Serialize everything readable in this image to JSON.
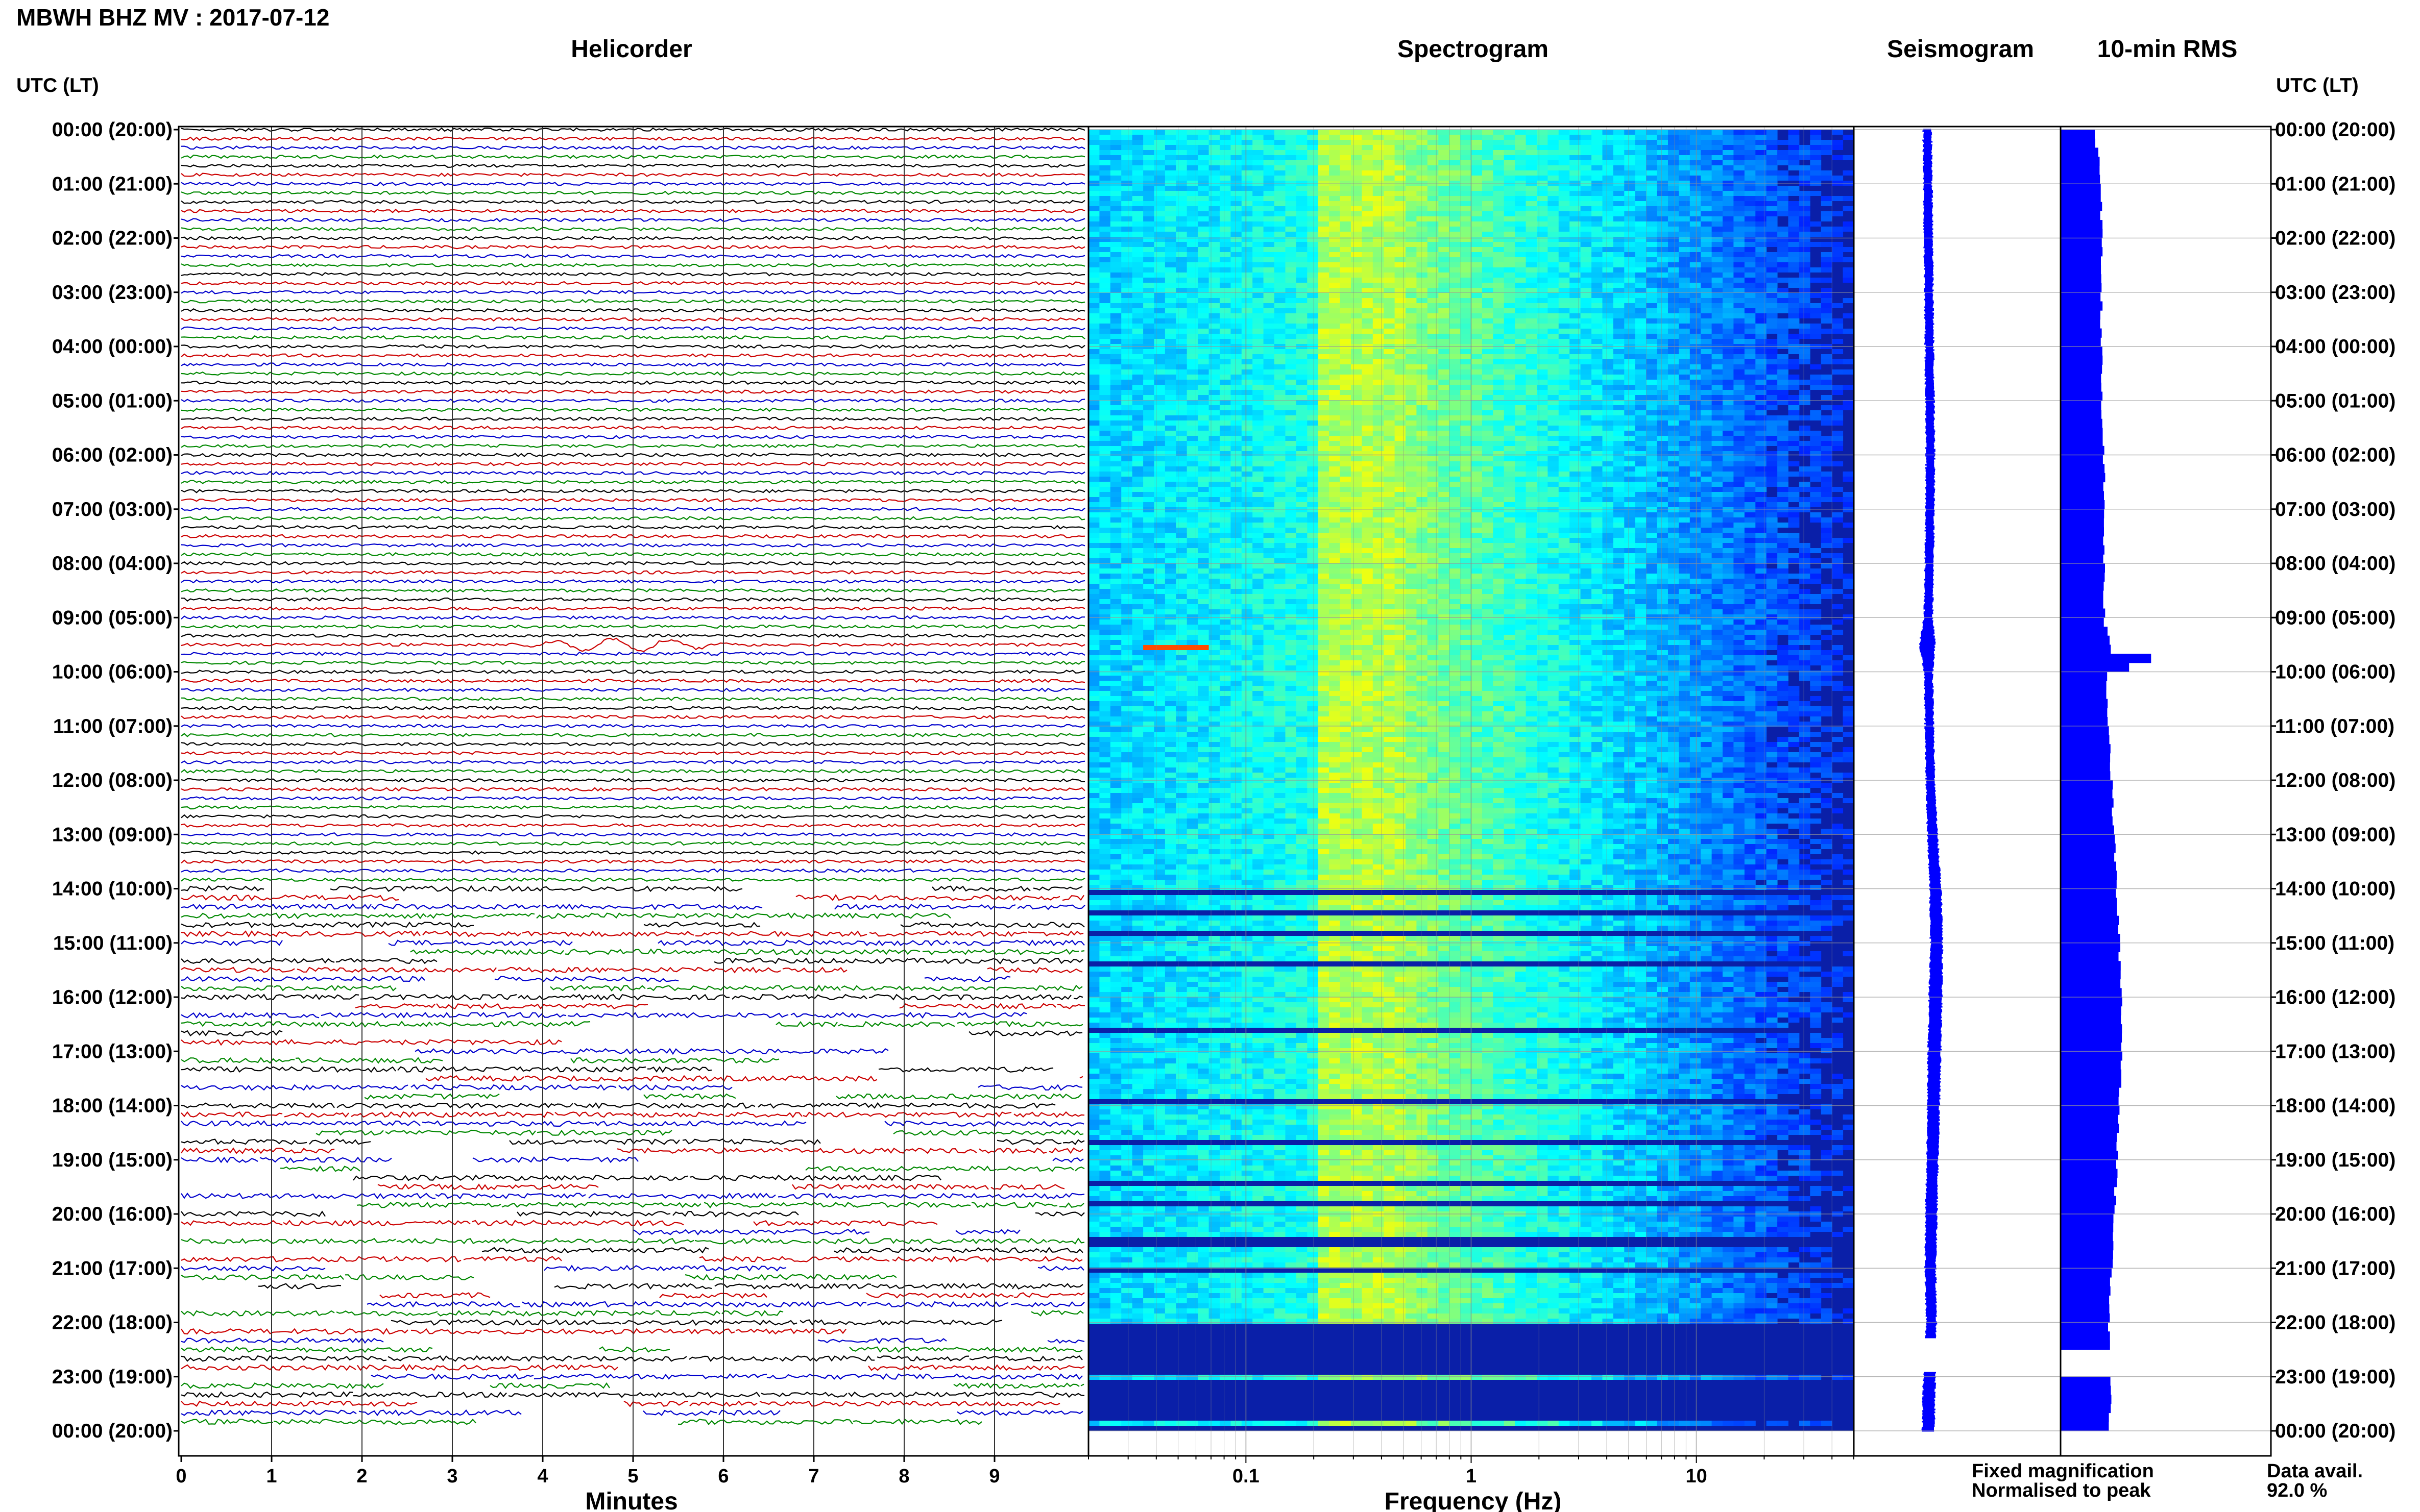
{
  "header": {
    "title": "MBWH BHZ MV : 2017-07-12"
  },
  "panels": {
    "helicorder": "Helicorder",
    "spectrogram": "Spectrogram",
    "seismogram": "Seismogram",
    "rms": "10-min RMS"
  },
  "axes": {
    "time_header_left": "UTC (LT)",
    "time_header_right": "UTC (LT)",
    "minutes_label": "Minutes",
    "frequency_label": "Frequency (Hz)"
  },
  "legend": {
    "fixed": "Fixed magnification",
    "normalised": "Normalised to peak",
    "fixed_color": "#0000ff",
    "normalised_color": "#ff0000",
    "avail_label": "Data avail.",
    "avail_value": "92.0 %"
  },
  "colors": {
    "trace_cycle": [
      "#000000",
      "#cc0000",
      "#0000cc",
      "#008800"
    ],
    "seismogram": "#0000ff",
    "rms_bar": "#0000ff",
    "spectrogram_background": "#0a1fa8"
  },
  "chart_data": [
    {
      "type": "line",
      "name": "helicorder",
      "x_unit": "minutes",
      "xlim": [
        0,
        10
      ],
      "x_ticks": [
        "0",
        "1",
        "2",
        "3",
        "4",
        "5",
        "6",
        "7",
        "8",
        "9"
      ],
      "xlabel": "Minutes",
      "time_labels": [
        "00:00 (20:00)",
        "01:00 (21:00)",
        "02:00 (22:00)",
        "03:00 (23:00)",
        "04:00 (00:00)",
        "05:00 (01:00)",
        "06:00 (02:00)",
        "07:00 (03:00)",
        "08:00 (04:00)",
        "09:00 (05:00)",
        "10:00 (06:00)",
        "11:00 (07:00)",
        "12:00 (08:00)",
        "13:00 (09:00)",
        "14:00 (10:00)",
        "15:00 (11:00)",
        "16:00 (12:00)",
        "17:00 (13:00)",
        "18:00 (14:00)",
        "19:00 (15:00)",
        "20:00 (16:00)",
        "21:00 (17:00)",
        "22:00 (18:00)",
        "23:00 (19:00)",
        "00:00 (20:00)"
      ],
      "lines_per_hour": 6,
      "event_hour": 9.5,
      "gap_period_hours": [
        14,
        24
      ]
    },
    {
      "type": "heatmap",
      "name": "spectrogram",
      "x_scale": "log",
      "xlim_hz": [
        0.02,
        50
      ],
      "x_ticks": [
        "0.1",
        "1",
        "10"
      ],
      "xlabel": "Frequency (Hz)",
      "peak_band_hz": [
        0.2,
        0.5
      ],
      "event_hour": 9.5,
      "event_band_hz": [
        0.035,
        0.07
      ],
      "gap_hours": [
        [
          14.0,
          14.1
        ],
        [
          14.4,
          14.46
        ],
        [
          14.7,
          14.8
        ],
        [
          15.0,
          15.05
        ],
        [
          15.3,
          15.4
        ],
        [
          16.55,
          16.6
        ],
        [
          17.8,
          17.95
        ],
        [
          18.6,
          18.65
        ],
        [
          19.35,
          19.45
        ],
        [
          19.75,
          19.8
        ],
        [
          20.05,
          20.1
        ],
        [
          20.4,
          20.55
        ],
        [
          20.95,
          21.0
        ],
        [
          21.5,
          21.55
        ],
        [
          22.0,
          22.95
        ],
        [
          23.05,
          23.8
        ],
        [
          23.9,
          23.95
        ]
      ]
    },
    {
      "type": "line",
      "name": "seismogram",
      "hours": [
        0,
        2,
        4,
        6,
        8,
        9,
        9.5,
        10,
        11,
        12,
        13,
        14,
        15,
        16,
        17,
        18,
        19,
        20,
        21,
        22,
        23,
        24
      ],
      "offset": [
        0.35,
        0.4,
        0.45,
        0.5,
        0.45,
        0.4,
        0.35,
        0.4,
        0.45,
        0.5,
        0.6,
        0.75,
        0.8,
        0.75,
        0.7,
        0.65,
        0.6,
        0.55,
        0.5,
        0.55,
        0.45,
        0.4
      ],
      "amplitude": [
        1,
        1,
        1,
        1,
        1,
        1,
        2,
        1,
        1,
        1,
        1.2,
        1.4,
        1.5,
        1.6,
        1.6,
        1.5,
        1.4,
        1.4,
        1.3,
        1.2,
        1.5,
        1.5
      ],
      "gap_hours": [
        [
          22.3,
          22.9
        ]
      ]
    },
    {
      "type": "bar",
      "name": "rms",
      "orientation": "horizontal",
      "interval_minutes": 10,
      "hours": [
        0,
        0.5,
        1,
        2,
        3,
        4,
        5,
        6,
        7,
        8,
        9,
        9.5,
        9.67,
        10,
        11,
        12,
        13,
        14,
        15,
        16,
        17,
        18,
        19,
        20,
        21,
        22,
        23,
        24
      ],
      "values": [
        0.65,
        0.75,
        0.8,
        0.8,
        0.8,
        0.8,
        0.8,
        0.85,
        0.85,
        0.85,
        0.85,
        1.0,
        1.8,
        0.9,
        0.95,
        1.0,
        1.05,
        1.1,
        1.15,
        1.2,
        1.2,
        1.15,
        1.1,
        1.05,
        1.0,
        0.95,
        1.0,
        0.95
      ],
      "gap_hours": [
        [
          22.5,
          22.85
        ]
      ]
    }
  ]
}
